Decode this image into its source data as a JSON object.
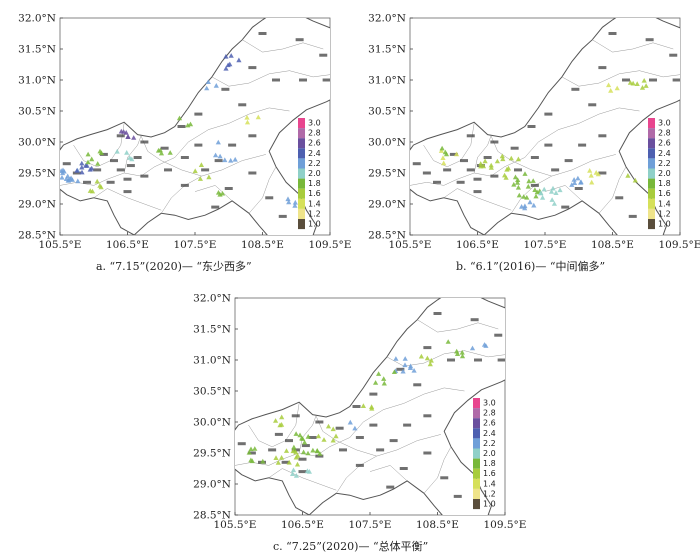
{
  "figure": {
    "axes": {
      "lon": {
        "min": 105.5,
        "max": 109.5,
        "ticks": [
          105.5,
          106.5,
          107.5,
          108.5,
          109.5
        ],
        "tick_labels": [
          "105.5°E",
          "106.5°E",
          "107.5°E",
          "108.5°E",
          "109.5°E"
        ]
      },
      "lat": {
        "min": 28.5,
        "max": 32.0,
        "ticks": [
          28.5,
          29.0,
          29.5,
          30.0,
          30.5,
          31.0,
          31.5,
          32.0
        ],
        "tick_labels": [
          "28.5°N",
          "29.0°N",
          "29.5°N",
          "30.0°N",
          "30.5°N",
          "31.0°N",
          "31.5°N",
          "32.0°N"
        ]
      }
    },
    "colorbar": {
      "labels": [
        "3.0",
        "2.8",
        "2.6",
        "2.4",
        "2.2",
        "2.0",
        "1.8",
        "1.6",
        "1.4",
        "1.2",
        "1.0"
      ],
      "colors": [
        "#e8458e",
        "#b06aa8",
        "#6a4f9e",
        "#4d5fb0",
        "#6f9fd8",
        "#8fd0c8",
        "#78b83a",
        "#a8cc3c",
        "#d6e05a",
        "#efe48a",
        "#5a4e3c"
      ]
    },
    "panels": [
      {
        "id": "a",
        "caption": "a. “7.15”(2020)— “东少西多”",
        "clusters": [
          {
            "lon": 105.65,
            "lat": 29.45,
            "value": 2.2,
            "n": 14,
            "spread": 0.14
          },
          {
            "lon": 105.85,
            "lat": 29.6,
            "value": 2.4,
            "n": 8,
            "spread": 0.12
          },
          {
            "lon": 106.0,
            "lat": 29.75,
            "value": 1.8,
            "n": 6,
            "spread": 0.15
          },
          {
            "lon": 106.05,
            "lat": 29.25,
            "value": 1.6,
            "n": 5,
            "spread": 0.15
          },
          {
            "lon": 106.5,
            "lat": 30.1,
            "value": 2.6,
            "n": 6,
            "spread": 0.1
          },
          {
            "lon": 106.45,
            "lat": 29.8,
            "value": 2.0,
            "n": 4,
            "spread": 0.12
          },
          {
            "lon": 107.1,
            "lat": 29.75,
            "value": 1.8,
            "n": 4,
            "spread": 0.15
          },
          {
            "lon": 107.6,
            "lat": 29.55,
            "value": 1.6,
            "n": 4,
            "spread": 0.18
          },
          {
            "lon": 108.0,
            "lat": 29.85,
            "value": 2.2,
            "n": 6,
            "spread": 0.2
          },
          {
            "lon": 108.3,
            "lat": 30.35,
            "value": 1.4,
            "n": 3,
            "spread": 0.15
          },
          {
            "lon": 108.1,
            "lat": 31.3,
            "value": 2.4,
            "n": 6,
            "spread": 0.15
          },
          {
            "lon": 107.7,
            "lat": 30.9,
            "value": 2.2,
            "n": 3,
            "spread": 0.12
          },
          {
            "lon": 107.4,
            "lat": 30.3,
            "value": 1.8,
            "n": 3,
            "spread": 0.15
          },
          {
            "lon": 108.9,
            "lat": 29.0,
            "value": 2.2,
            "n": 4,
            "spread": 0.12
          },
          {
            "lon": 107.85,
            "lat": 29.1,
            "value": 1.8,
            "n": 3,
            "spread": 0.12
          }
        ]
      },
      {
        "id": "b",
        "caption": "b. “6.1”(2016)— “中间偏多”",
        "clusters": [
          {
            "lon": 107.25,
            "lat": 29.3,
            "value": 1.8,
            "n": 16,
            "spread": 0.25
          },
          {
            "lon": 106.95,
            "lat": 29.6,
            "value": 1.6,
            "n": 10,
            "spread": 0.25
          },
          {
            "lon": 107.6,
            "lat": 29.15,
            "value": 2.0,
            "n": 10,
            "spread": 0.2
          },
          {
            "lon": 107.9,
            "lat": 29.4,
            "value": 2.2,
            "n": 6,
            "spread": 0.15
          },
          {
            "lon": 107.3,
            "lat": 28.95,
            "value": 2.2,
            "n": 5,
            "spread": 0.15
          },
          {
            "lon": 108.25,
            "lat": 29.4,
            "value": 1.4,
            "n": 5,
            "spread": 0.2
          },
          {
            "lon": 106.6,
            "lat": 29.65,
            "value": 1.6,
            "n": 5,
            "spread": 0.15
          },
          {
            "lon": 106.1,
            "lat": 29.75,
            "value": 1.4,
            "n": 4,
            "spread": 0.15
          },
          {
            "lon": 106.0,
            "lat": 29.9,
            "value": 1.8,
            "n": 3,
            "spread": 0.12
          },
          {
            "lon": 108.9,
            "lat": 30.9,
            "value": 1.6,
            "n": 6,
            "spread": 0.15
          },
          {
            "lon": 108.5,
            "lat": 30.85,
            "value": 1.4,
            "n": 3,
            "spread": 0.12
          },
          {
            "lon": 108.8,
            "lat": 29.45,
            "value": 1.6,
            "n": 2,
            "spread": 0.1
          }
        ]
      },
      {
        "id": "c",
        "caption": "c. “7.25”(2020)— “总体平衡”",
        "clusters": [
          {
            "lon": 106.55,
            "lat": 29.65,
            "value": 1.8,
            "n": 14,
            "spread": 0.22
          },
          {
            "lon": 106.3,
            "lat": 29.4,
            "value": 1.6,
            "n": 10,
            "spread": 0.2
          },
          {
            "lon": 105.8,
            "lat": 29.45,
            "value": 1.8,
            "n": 6,
            "spread": 0.18
          },
          {
            "lon": 106.9,
            "lat": 29.8,
            "value": 1.6,
            "n": 6,
            "spread": 0.18
          },
          {
            "lon": 106.1,
            "lat": 30.05,
            "value": 1.6,
            "n": 4,
            "spread": 0.15
          },
          {
            "lon": 106.5,
            "lat": 29.25,
            "value": 2.0,
            "n": 5,
            "spread": 0.15
          },
          {
            "lon": 108.0,
            "lat": 30.9,
            "value": 2.2,
            "n": 8,
            "spread": 0.2
          },
          {
            "lon": 107.7,
            "lat": 30.75,
            "value": 1.8,
            "n": 5,
            "spread": 0.18
          },
          {
            "lon": 108.3,
            "lat": 31.05,
            "value": 1.6,
            "n": 4,
            "spread": 0.15
          },
          {
            "lon": 108.7,
            "lat": 31.2,
            "value": 1.8,
            "n": 5,
            "spread": 0.18
          },
          {
            "lon": 109.1,
            "lat": 31.25,
            "value": 2.2,
            "n": 3,
            "spread": 0.12
          },
          {
            "lon": 107.4,
            "lat": 30.3,
            "value": 1.6,
            "n": 3,
            "spread": 0.15
          },
          {
            "lon": 107.2,
            "lat": 29.95,
            "value": 2.2,
            "n": 2,
            "spread": 0.1
          }
        ]
      }
    ],
    "colors": {
      "boundary": "#555555",
      "inner_boundary": "#9a9a9a",
      "frame": "#666666"
    }
  }
}
